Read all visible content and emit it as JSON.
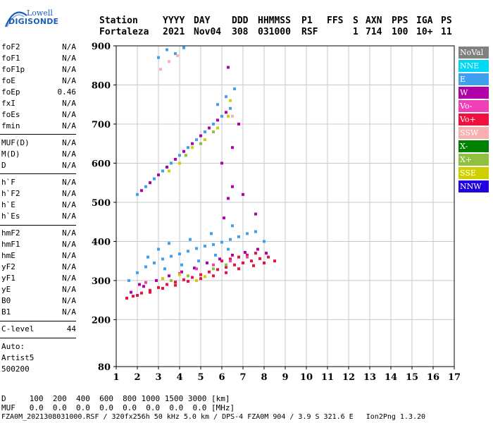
{
  "logo": {
    "line1": "Lowell",
    "line2": "DIGISONDE"
  },
  "header": {
    "labels": [
      "Station",
      "YYYY",
      "DAY",
      "DDD",
      "HHMMSS",
      "P1",
      "FFS",
      "S",
      "AXN",
      "PPS",
      "IGA",
      "PS"
    ],
    "values": [
      "Fortaleza",
      "2021",
      "Nov04",
      "308",
      "031000",
      "RSF",
      "",
      "1",
      "714",
      "100",
      "10+",
      "11"
    ]
  },
  "params": [
    {
      "name": "foF2",
      "value": "N/A"
    },
    {
      "name": "foF1",
      "value": "N/A"
    },
    {
      "name": "foF1p",
      "value": "N/A"
    },
    {
      "name": "foE",
      "value": "N/A"
    },
    {
      "name": "foEp",
      "value": "0.46"
    },
    {
      "name": "fxI",
      "value": "N/A"
    },
    {
      "name": "foEs",
      "value": "N/A"
    },
    {
      "name": "fmin",
      "value": "N/A"
    },
    {
      "name": "MUF(D)",
      "value": "N/A"
    },
    {
      "name": "M(D)",
      "value": "N/A"
    },
    {
      "name": "D",
      "value": "N/A"
    },
    {
      "name": "h`F",
      "value": "N/A"
    },
    {
      "name": "h`F2",
      "value": "N/A"
    },
    {
      "name": "h`E",
      "value": "N/A"
    },
    {
      "name": "h`Es",
      "value": "N/A"
    },
    {
      "name": "hmF2",
      "value": "N/A"
    },
    {
      "name": "hmF1",
      "value": "N/A"
    },
    {
      "name": "hmE",
      "value": "N/A"
    },
    {
      "name": "yF2",
      "value": "N/A"
    },
    {
      "name": "yF1",
      "value": "N/A"
    },
    {
      "name": "yE",
      "value": "N/A"
    },
    {
      "name": "B0",
      "value": "N/A"
    },
    {
      "name": "B1",
      "value": "N/A"
    },
    {
      "name": "C-level",
      "value": "44"
    }
  ],
  "autoscaling": {
    "line1": "Auto:",
    "line2": "Artist5",
    "line3": "500200"
  },
  "legend": [
    {
      "label": "NoVal",
      "color": "#808080"
    },
    {
      "label": "NNE",
      "color": "#00d8f8"
    },
    {
      "label": "E",
      "color": "#40a0f0"
    },
    {
      "label": "W",
      "color": "#b000a8"
    },
    {
      "label": "Vo-",
      "color": "#f040b8"
    },
    {
      "label": "Vo+",
      "color": "#f01040"
    },
    {
      "label": "SSW",
      "color": "#f8b0b0"
    },
    {
      "label": "X-",
      "color": "#008000"
    },
    {
      "label": "X+",
      "color": "#90c040"
    },
    {
      "label": "SSE",
      "color": "#d0d000"
    },
    {
      "label": "NNW",
      "color": "#2000e0"
    }
  ],
  "footer": {
    "d_row": "D     100  200  400  600  800 1000 1500 3000 [km]",
    "muf_row": "MUF   0.0  0.0  0.0  0.0  0.0  0.0  0.0  0.0 [MHz]",
    "info": "FZA0M_2021308031000.RSF / 320fx256h 50 kHz 5.0 km / DPS-4 FZA0M 904 / 3.9 S 321.6 E   Ion2Png 1.3.20"
  },
  "chart_data": {
    "type": "scatter",
    "xlim": [
      1,
      17
    ],
    "ylim": [
      80,
      900
    ],
    "xticks": [
      1,
      2,
      3,
      4,
      5,
      6,
      7,
      8,
      9,
      10,
      11,
      12,
      13,
      14,
      15,
      16,
      17
    ],
    "yticks": [
      80,
      200,
      300,
      400,
      500,
      600,
      700,
      800,
      900
    ],
    "grid": true,
    "legend_position": "right",
    "series": [
      {
        "color": "#f01040",
        "points": [
          [
            1.5,
            255
          ],
          [
            1.8,
            260
          ],
          [
            2.2,
            268
          ],
          [
            2.6,
            275
          ],
          [
            3.0,
            282
          ],
          [
            3.4,
            290
          ],
          [
            3.8,
            296
          ],
          [
            4.2,
            302
          ],
          [
            4.6,
            308
          ],
          [
            5.0,
            315
          ],
          [
            5.4,
            322
          ],
          [
            5.8,
            328
          ],
          [
            6.2,
            334
          ],
          [
            6.6,
            340
          ],
          [
            7.0,
            345
          ],
          [
            7.4,
            350
          ],
          [
            7.8,
            356
          ],
          [
            8.2,
            360
          ],
          [
            8.5,
            350
          ],
          [
            6.8,
            330
          ],
          [
            6.2,
            320
          ],
          [
            5.6,
            312
          ],
          [
            5.0,
            305
          ],
          [
            4.4,
            298
          ],
          [
            3.8,
            288
          ],
          [
            3.2,
            280
          ],
          [
            2.6,
            270
          ],
          [
            2.0,
            262
          ],
          [
            7.6,
            370
          ],
          [
            7.2,
            365
          ],
          [
            6.8,
            360
          ],
          [
            6.4,
            355
          ],
          [
            6.0,
            350
          ],
          [
            8.0,
            345
          ],
          [
            7.5,
            338
          ]
        ]
      },
      {
        "color": "#40a0f0",
        "points": [
          [
            1.6,
            300
          ],
          [
            2.0,
            320
          ],
          [
            2.4,
            335
          ],
          [
            2.8,
            345
          ],
          [
            3.2,
            355
          ],
          [
            3.6,
            362
          ],
          [
            4.0,
            368
          ],
          [
            4.4,
            375
          ],
          [
            4.8,
            382
          ],
          [
            5.2,
            388
          ],
          [
            5.6,
            392
          ],
          [
            6.0,
            398
          ],
          [
            6.4,
            405
          ],
          [
            6.8,
            412
          ],
          [
            7.2,
            420
          ],
          [
            7.6,
            425
          ],
          [
            8.0,
            400
          ],
          [
            3.0,
            380
          ],
          [
            3.5,
            395
          ],
          [
            4.5,
            405
          ],
          [
            5.5,
            420
          ],
          [
            6.5,
            440
          ],
          [
            2.5,
            360
          ],
          [
            3.3,
            330
          ],
          [
            4.1,
            340
          ],
          [
            4.9,
            350
          ],
          [
            5.7,
            365
          ],
          [
            6.3,
            380
          ]
        ]
      },
      {
        "color": "#b000a8",
        "points": [
          [
            1.7,
            270
          ],
          [
            2.3,
            285
          ],
          [
            2.9,
            300
          ],
          [
            3.5,
            312
          ],
          [
            4.1,
            322
          ],
          [
            4.7,
            332
          ],
          [
            5.3,
            345
          ],
          [
            5.9,
            355
          ],
          [
            6.5,
            365
          ],
          [
            7.1,
            372
          ],
          [
            7.7,
            380
          ],
          [
            8.1,
            370
          ],
          [
            2.1,
            290
          ],
          [
            6.1,
            460
          ],
          [
            6.3,
            510
          ],
          [
            6.5,
            540
          ],
          [
            7.0,
            520
          ],
          [
            7.6,
            470
          ]
        ]
      },
      {
        "color": "#f040b8",
        "points": [
          [
            2.4,
            295
          ],
          [
            3.2,
            305
          ],
          [
            4.0,
            318
          ],
          [
            4.8,
            330
          ],
          [
            5.6,
            340
          ],
          [
            6.4,
            350
          ],
          [
            7.2,
            360
          ]
        ]
      },
      {
        "color": "#d0d000",
        "points": [
          [
            3.2,
            305
          ],
          [
            4.0,
            315
          ],
          [
            4.8,
            300
          ],
          [
            5.2,
            310
          ],
          [
            3.5,
            580
          ],
          [
            4.0,
            600
          ],
          [
            4.6,
            640
          ],
          [
            5.2,
            660
          ],
          [
            5.8,
            690
          ],
          [
            6.3,
            720
          ],
          [
            6.4,
            760
          ]
        ]
      },
      {
        "color": "#90c040",
        "points": [
          [
            3.6,
            300
          ],
          [
            4.4,
            312
          ],
          [
            5.6,
            330
          ],
          [
            6.2,
            340
          ],
          [
            4.3,
            620
          ],
          [
            5.0,
            650
          ],
          [
            5.6,
            680
          ]
        ]
      },
      {
        "color": "#40a0f0",
        "points": [
          [
            2.0,
            520
          ],
          [
            2.4,
            540
          ],
          [
            2.8,
            560
          ],
          [
            3.2,
            580
          ],
          [
            3.6,
            600
          ],
          [
            4.0,
            620
          ],
          [
            4.4,
            640
          ],
          [
            4.8,
            660
          ],
          [
            5.2,
            680
          ],
          [
            5.6,
            700
          ],
          [
            6.0,
            720
          ],
          [
            6.4,
            740
          ],
          [
            6.6,
            790
          ],
          [
            3.0,
            870
          ],
          [
            3.4,
            890
          ],
          [
            3.8,
            880
          ],
          [
            4.2,
            895
          ],
          [
            5.8,
            750
          ],
          [
            6.2,
            770
          ]
        ]
      },
      {
        "color": "#b000a8",
        "points": [
          [
            2.2,
            530
          ],
          [
            2.6,
            550
          ],
          [
            3.0,
            570
          ],
          [
            3.4,
            590
          ],
          [
            3.8,
            610
          ],
          [
            4.2,
            630
          ],
          [
            4.6,
            650
          ],
          [
            5.0,
            670
          ],
          [
            5.4,
            690
          ],
          [
            5.8,
            710
          ],
          [
            6.2,
            730
          ],
          [
            6.8,
            700
          ],
          [
            6.5,
            640
          ],
          [
            6.0,
            600
          ],
          [
            6.3,
            845
          ]
        ]
      },
      {
        "color": "#f8b0b0",
        "points": [
          [
            3.1,
            840
          ],
          [
            3.5,
            860
          ],
          [
            3.9,
            875
          ],
          [
            6.5,
            720
          ]
        ]
      }
    ]
  }
}
